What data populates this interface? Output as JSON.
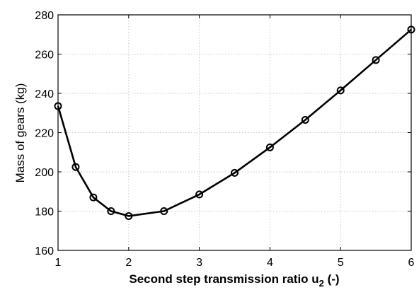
{
  "chart_data": {
    "type": "line",
    "title": "",
    "xlabel_main": "Second step transmission ratio u",
    "xlabel_sub": "2",
    "xlabel_tail": " (-)",
    "ylabel": "Mass of gears (kg)",
    "xlim": [
      1,
      6
    ],
    "ylim": [
      160,
      280
    ],
    "xticks": [
      1,
      2,
      3,
      4,
      5,
      6
    ],
    "yticks": [
      160,
      180,
      200,
      220,
      240,
      260,
      280
    ],
    "grid": true,
    "line_color": "#000000",
    "marker": "open-circle",
    "series": [
      {
        "x": [
          1,
          1.25,
          1.5,
          1.75,
          2,
          2.5,
          3,
          3.5,
          4,
          4.5,
          5,
          5.5,
          6
        ],
        "y": [
          233.5,
          202.5,
          187,
          180,
          177.5,
          180,
          188.5,
          199.5,
          212.5,
          226.5,
          241.5,
          257,
          272.5
        ]
      }
    ]
  }
}
